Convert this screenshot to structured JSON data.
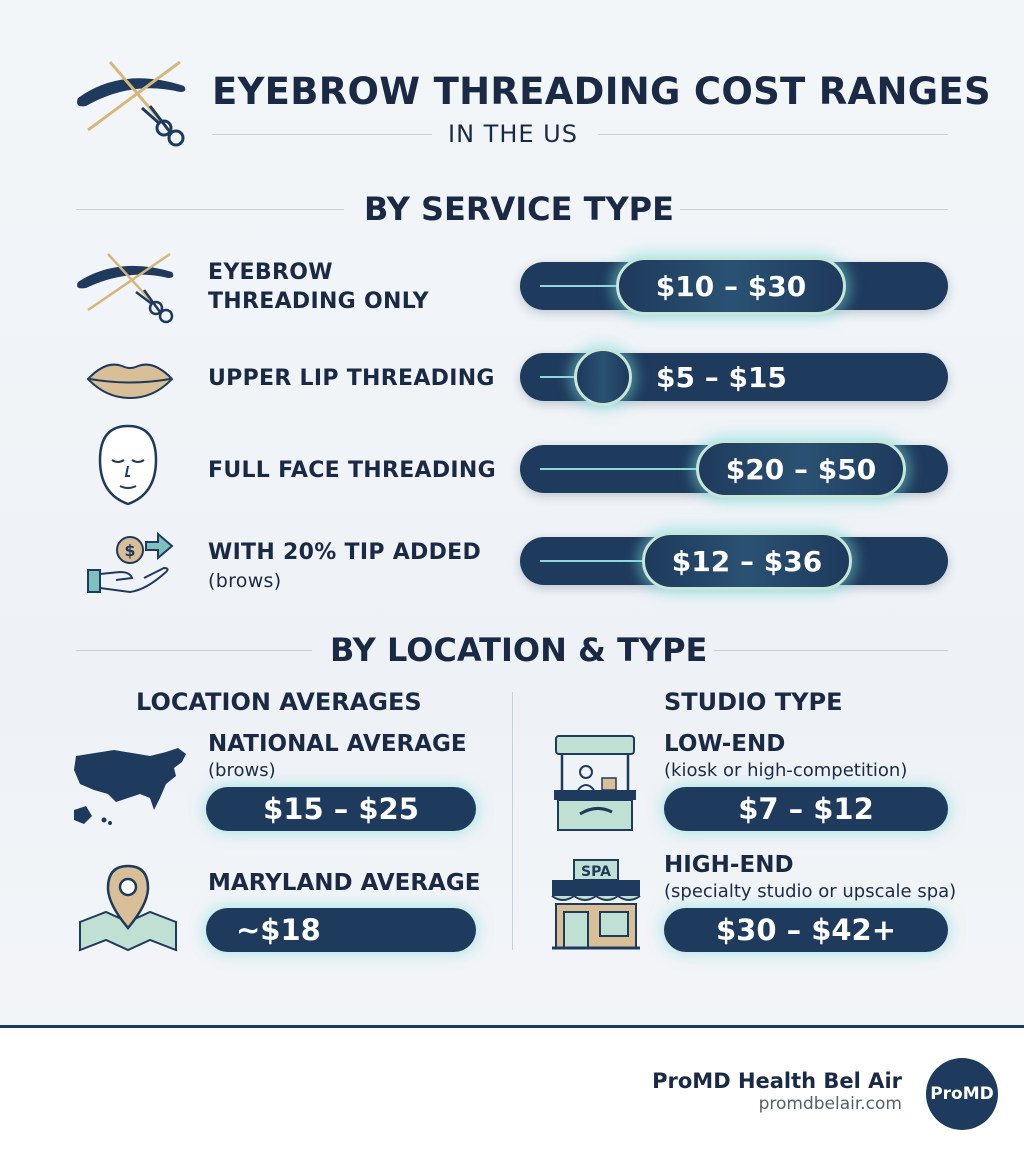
{
  "header": {
    "title": "EYEBROW THREADING COST RANGES",
    "subtitle": "IN THE US"
  },
  "service_section": {
    "title": "BY SERVICE TYPE",
    "rows": [
      {
        "icon": "eyebrow-thread-scissors-icon",
        "label_line1": "EYEBROW",
        "label_line2": "THREADING ONLY",
        "price": "$10 – $30"
      },
      {
        "icon": "lips-icon",
        "label_line1": "UPPER LIP THREADING",
        "price": "$5 – $15"
      },
      {
        "icon": "face-icon",
        "label_line1": "FULL FACE THREADING",
        "price": "$20 – $50"
      },
      {
        "icon": "hand-coin-icon",
        "label_line1": "WITH 20% TIP ADDED",
        "label_sub": "(brows)",
        "price": "$12 – $36"
      }
    ]
  },
  "location_section": {
    "title": "BY LOCATION & TYPE",
    "location_col": {
      "title": "LOCATION AVERAGES",
      "items": [
        {
          "icon": "us-map-icon",
          "label": "NATIONAL AVERAGE",
          "sub": "(brows)",
          "price": "$15 – $25"
        },
        {
          "icon": "map-pin-icon",
          "label": "MARYLAND AVERAGE",
          "price": "~$18"
        }
      ]
    },
    "studio_col": {
      "title": "STUDIO TYPE",
      "items": [
        {
          "icon": "kiosk-icon",
          "label": "LOW-END",
          "sub": "(kiosk or high-competition)",
          "price": "$7 – $12"
        },
        {
          "icon": "spa-storefront-icon",
          "label": "HIGH-END",
          "sub": "(specialty studio or upscale spa)",
          "price": "$30 – $42+",
          "sign": "SPA"
        }
      ]
    }
  },
  "footer": {
    "brand": "ProMD Health Bel Air",
    "url": "promdbelair.com",
    "logo_text": "ProMD"
  },
  "colors": {
    "navy": "#1e3a5c",
    "glow": "#8fd8d8",
    "gold": "#d9c08a"
  }
}
